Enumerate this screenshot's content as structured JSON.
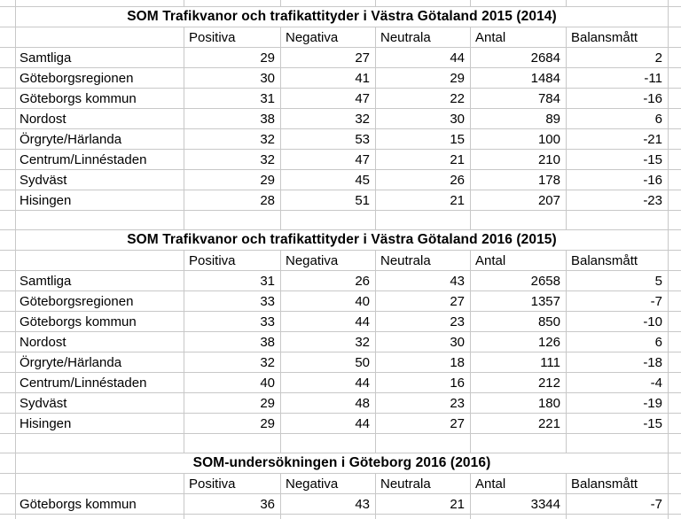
{
  "sheet": {
    "background": "#ffffff",
    "gridline_color": "#c8c8c8",
    "text_color": "#000000"
  },
  "tables": [
    {
      "title": "SOM Trafikvanor och trafikattityder i Västra Götaland 2015 (2014)",
      "headers": [
        "Positiva",
        "Negativa",
        "Neutrala",
        "Antal",
        "Balansmått"
      ],
      "rows": [
        {
          "label": "Samtliga",
          "values": [
            29,
            27,
            44,
            2684,
            2
          ]
        },
        {
          "label": "Göteborgsregionen",
          "values": [
            30,
            41,
            29,
            1484,
            -11
          ]
        },
        {
          "label": "Göteborgs kommun",
          "values": [
            31,
            47,
            22,
            784,
            -16
          ]
        },
        {
          "label": "Nordost",
          "values": [
            38,
            32,
            30,
            89,
            6
          ]
        },
        {
          "label": "Örgryte/Härlanda",
          "values": [
            32,
            53,
            15,
            100,
            -21
          ]
        },
        {
          "label": "Centrum/Linnéstaden",
          "values": [
            32,
            47,
            21,
            210,
            -15
          ]
        },
        {
          "label": "Sydväst",
          "values": [
            29,
            45,
            26,
            178,
            -16
          ]
        },
        {
          "label": "Hisingen",
          "values": [
            28,
            51,
            21,
            207,
            -23
          ]
        }
      ]
    },
    {
      "title": "SOM Trafikvanor och trafikattityder i Västra Götaland 2016 (2015)",
      "headers": [
        "Positiva",
        "Negativa",
        "Neutrala",
        "Antal",
        "Balansmått"
      ],
      "rows": [
        {
          "label": "Samtliga",
          "values": [
            31,
            26,
            43,
            2658,
            5
          ]
        },
        {
          "label": "Göteborgsregionen",
          "values": [
            33,
            40,
            27,
            1357,
            -7
          ]
        },
        {
          "label": "Göteborgs kommun",
          "values": [
            33,
            44,
            23,
            850,
            -10
          ]
        },
        {
          "label": "Nordost",
          "values": [
            38,
            32,
            30,
            126,
            6
          ]
        },
        {
          "label": "Örgryte/Härlanda",
          "values": [
            32,
            50,
            18,
            111,
            -18
          ]
        },
        {
          "label": "Centrum/Linnéstaden",
          "values": [
            40,
            44,
            16,
            212,
            -4
          ]
        },
        {
          "label": "Sydväst",
          "values": [
            29,
            48,
            23,
            180,
            -19
          ]
        },
        {
          "label": "Hisingen",
          "values": [
            29,
            44,
            27,
            221,
            -15
          ]
        }
      ]
    },
    {
      "title": "SOM-undersökningen i Göteborg 2016 (2016)",
      "headers": [
        "Positiva",
        "Negativa",
        "Neutrala",
        "Antal",
        "Balansmått"
      ],
      "rows": [
        {
          "label": "Göteborgs kommun",
          "values": [
            36,
            43,
            21,
            3344,
            -7
          ]
        }
      ]
    }
  ]
}
